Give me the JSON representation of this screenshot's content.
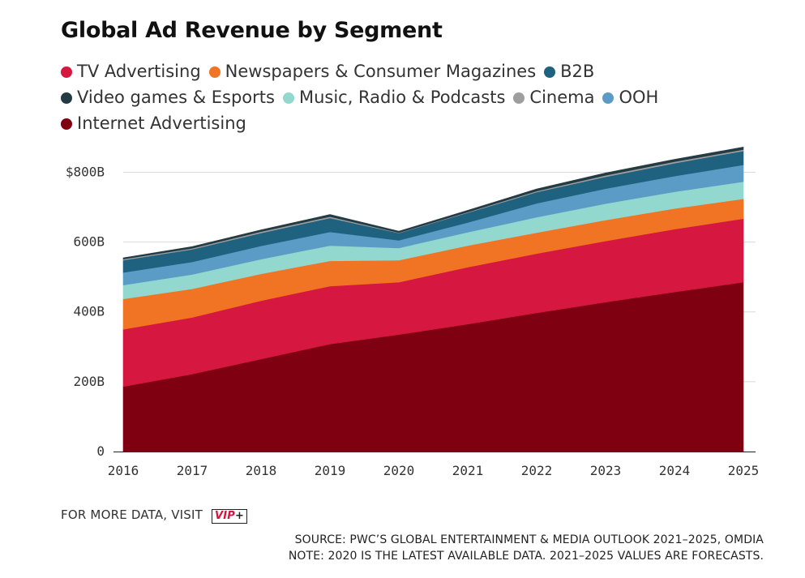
{
  "chart_data": {
    "type": "area",
    "stacked": true,
    "title": "Global Ad Revenue by Segment",
    "x": [
      "2016",
      "2017",
      "2018",
      "2019",
      "2020",
      "2021",
      "2022",
      "2023",
      "2024",
      "2025"
    ],
    "y_ticks": [
      {
        "value": 0,
        "label": "0"
      },
      {
        "value": 200,
        "label": "200B"
      },
      {
        "value": 400,
        "label": "400B"
      },
      {
        "value": 600,
        "label": "600B"
      },
      {
        "value": 800,
        "label": "$800B"
      }
    ],
    "ylim": [
      0,
      880
    ],
    "grid": true,
    "legend_position": "top",
    "series": [
      {
        "name": "Internet Advertising",
        "color": "#7f0011",
        "values": [
          186,
          222,
          265,
          308,
          335,
          365,
          397,
          428,
          457,
          485
        ]
      },
      {
        "name": "TV Advertising",
        "color": "#d6173f",
        "values": [
          164,
          162,
          167,
          166,
          150,
          163,
          170,
          175,
          180,
          182
        ]
      },
      {
        "name": "Newspapers & Consumer Magazines",
        "color": "#f07423",
        "values": [
          87,
          82,
          77,
          72,
          63,
          62,
          60,
          60,
          59,
          57
        ]
      },
      {
        "name": "Music, Radio & Podcasts",
        "color": "#93d8cf",
        "values": [
          40,
          41,
          42,
          44,
          35,
          38,
          44,
          47,
          48,
          49
        ]
      },
      {
        "name": "OOH",
        "color": "#5b9cc6",
        "values": [
          36,
          36,
          38,
          39,
          22,
          28,
          40,
          43,
          45,
          48
        ]
      },
      {
        "name": "B2B",
        "color": "#1e6280",
        "values": [
          35,
          36,
          37,
          40,
          21,
          28,
          32,
          34,
          37,
          40
        ]
      },
      {
        "name": "Cinema",
        "color": "#9e9e9e",
        "values": [
          3,
          3,
          4,
          4,
          1,
          2,
          3,
          4,
          4,
          4
        ]
      },
      {
        "name": "Video games & Esports",
        "color": "#253b44",
        "values": [
          4,
          5,
          5,
          6,
          4,
          5,
          6,
          7,
          7,
          7
        ]
      }
    ]
  },
  "legend": [
    {
      "label": "TV Advertising",
      "color": "#d6173f"
    },
    {
      "label": "Newspapers & Consumer Magazines",
      "color": "#f07423"
    },
    {
      "label": "B2B",
      "color": "#1e6280"
    },
    {
      "label": "Video games & Esports",
      "color": "#253b44"
    },
    {
      "label": "Music, Radio & Podcasts",
      "color": "#93d8cf"
    },
    {
      "label": "Cinema",
      "color": "#9e9e9e"
    },
    {
      "label": "OOH",
      "color": "#5b9cc6"
    },
    {
      "label": "Internet Advertising",
      "color": "#7f0011"
    }
  ],
  "footer": {
    "more_data": "FOR MORE DATA, VISIT",
    "vip_logo": "VIP+",
    "source": "SOURCE: PWC’S GLOBAL ENTERTAINMENT & MEDIA OUTLOOK 2021–2025, OMDIA",
    "note": "NOTE: 2020 IS THE LATEST AVAILABLE DATA. 2021–2025 VALUES ARE FORECASTS."
  }
}
